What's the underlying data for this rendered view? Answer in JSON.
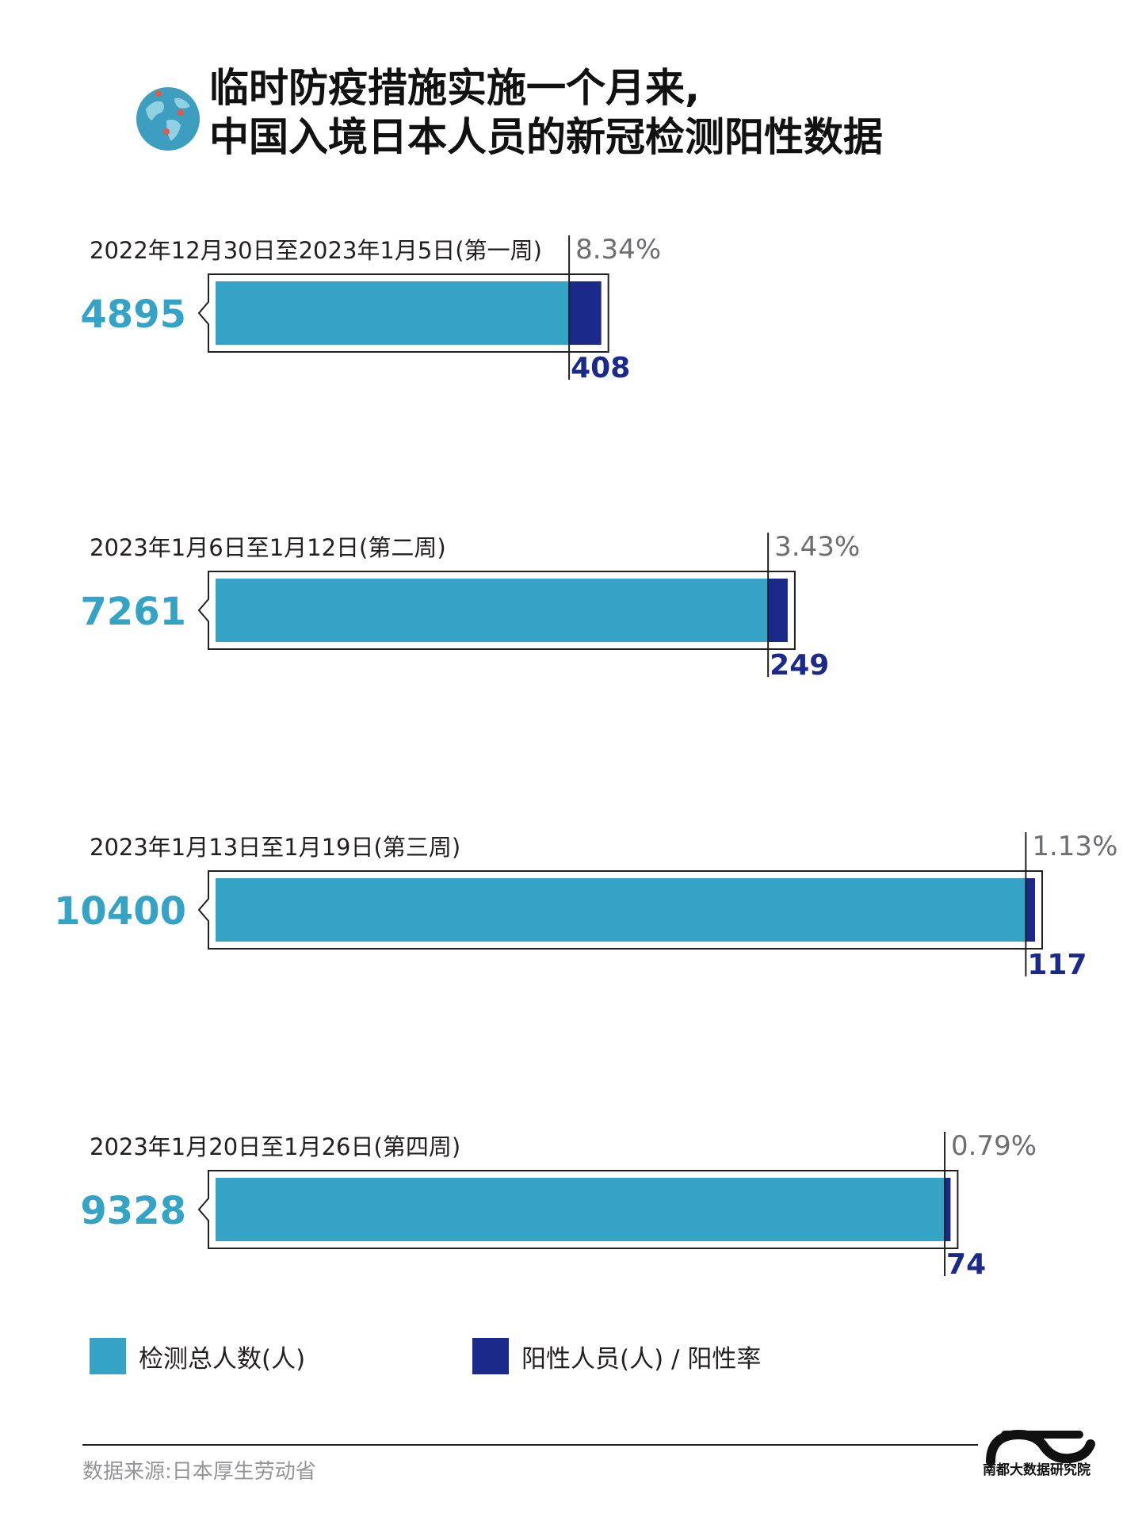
{
  "title": {
    "line1": "临时防疫措施实施一个月来,",
    "line2": "中国入境日本人员的新冠检测阳性数据"
  },
  "colors": {
    "total": "#35a3c5",
    "positive": "#1b2a8a",
    "rate_text": "#6d6e71",
    "outline": "#231f20"
  },
  "chart_data": {
    "type": "bar",
    "orientation": "horizontal",
    "categories": [
      "2022年12月30日至2023年1月5日(第一周)",
      "2023年1月6日至1月12日(第二周)",
      "2023年1月13日至1月19日(第三周)",
      "2023年1月20日至1月26日(第四周)"
    ],
    "series": [
      {
        "name": "检测总人数(人)",
        "values": [
          4895,
          7261,
          10400,
          9328
        ]
      },
      {
        "name": "阳性人员(人)",
        "values": [
          408,
          249,
          117,
          74
        ]
      }
    ],
    "positive_rate": [
      "8.34%",
      "3.43%",
      "1.13%",
      "0.79%"
    ],
    "xlim": [
      0,
      10400
    ]
  },
  "legend": {
    "total_label": "检测总人数(人)",
    "positive_label": "阳性人员(人) / 阳性率"
  },
  "footer": {
    "source": "数据来源:日本厚生劳动省",
    "logo_text": "南都大数据研究院"
  }
}
